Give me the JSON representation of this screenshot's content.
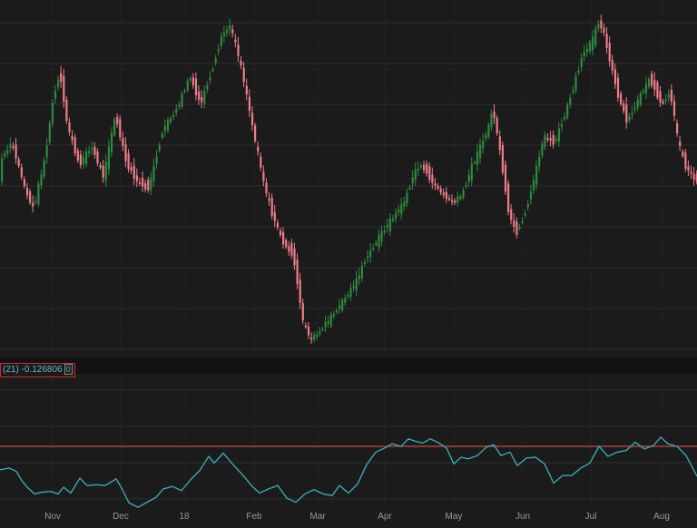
{
  "chart_data": [
    {
      "type": "candlestick",
      "title": "",
      "colors": {
        "up": "#2e8b3e",
        "down": "#f07c8a",
        "background": "#1b1b1b",
        "grid": "#2c2c2c"
      },
      "grid": true,
      "x_labels": [
        "Nov",
        "Dec",
        "18",
        "Feb",
        "Mar",
        "Apr",
        "May",
        "Jun",
        "Jul",
        "Aug"
      ],
      "close_path": [
        [
          0,
          0.66
        ],
        [
          12,
          0.58
        ],
        [
          28,
          0.82
        ],
        [
          36,
          0.88
        ],
        [
          48,
          0.66
        ],
        [
          58,
          0.36
        ],
        [
          65,
          0.25
        ],
        [
          73,
          0.5
        ],
        [
          86,
          0.68
        ],
        [
          100,
          0.6
        ],
        [
          113,
          0.74
        ],
        [
          126,
          0.45
        ],
        [
          138,
          0.67
        ],
        [
          150,
          0.76
        ],
        [
          163,
          0.79
        ],
        [
          178,
          0.52
        ],
        [
          193,
          0.43
        ],
        [
          208,
          0.27
        ],
        [
          220,
          0.4
        ],
        [
          234,
          0.22
        ],
        [
          243,
          0.08
        ],
        [
          253,
          0.04
        ],
        [
          263,
          0.2
        ],
        [
          271,
          0.37
        ],
        [
          279,
          0.55
        ],
        [
          290,
          0.78
        ],
        [
          298,
          0.9
        ],
        [
          310,
          1.04
        ],
        [
          322,
          1.1
        ],
        [
          333,
          1.42
        ],
        [
          342,
          1.5
        ],
        [
          353,
          1.45
        ],
        [
          368,
          1.37
        ],
        [
          380,
          1.3
        ],
        [
          392,
          1.22
        ],
        [
          402,
          1.12
        ],
        [
          415,
          1.03
        ],
        [
          430,
          0.94
        ],
        [
          444,
          0.86
        ],
        [
          455,
          0.72
        ],
        [
          464,
          0.68
        ],
        [
          475,
          0.76
        ],
        [
          486,
          0.82
        ],
        [
          500,
          0.86
        ],
        [
          508,
          0.82
        ],
        [
          518,
          0.7
        ],
        [
          528,
          0.6
        ],
        [
          535,
          0.54
        ],
        [
          542,
          0.42
        ],
        [
          552,
          0.68
        ],
        [
          560,
          0.92
        ],
        [
          568,
          1.0
        ],
        [
          578,
          0.9
        ],
        [
          590,
          0.7
        ],
        [
          598,
          0.55
        ],
        [
          610,
          0.58
        ],
        [
          625,
          0.4
        ],
        [
          640,
          0.18
        ],
        [
          652,
          0.1
        ],
        [
          660,
          0.0
        ],
        [
          670,
          0.18
        ],
        [
          680,
          0.36
        ],
        [
          690,
          0.48
        ],
        [
          702,
          0.38
        ],
        [
          715,
          0.28
        ],
        [
          728,
          0.4
        ],
        [
          738,
          0.35
        ],
        [
          746,
          0.58
        ],
        [
          755,
          0.7
        ],
        [
          768,
          0.76
        ]
      ]
    },
    {
      "type": "line",
      "study_label": "(21) -0.126806",
      "study_flag": "0",
      "reference_line": 0,
      "colors": {
        "line": "#3aa6b4",
        "reference": "#c84545"
      },
      "series": [
        {
          "values": [
            [
              0,
              0.56
            ],
            [
              10,
              0.52
            ],
            [
              18,
              0.6
            ],
            [
              24,
              0.82
            ],
            [
              30,
              0.98
            ],
            [
              38,
              1.14
            ],
            [
              46,
              1.1
            ],
            [
              56,
              1.08
            ],
            [
              64,
              1.14
            ],
            [
              70,
              0.98
            ],
            [
              78,
              1.12
            ],
            [
              88,
              0.76
            ],
            [
              96,
              0.94
            ],
            [
              106,
              0.92
            ],
            [
              116,
              0.94
            ],
            [
              128,
              0.78
            ],
            [
              134,
              1.0
            ],
            [
              142,
              1.35
            ],
            [
              152,
              1.46
            ],
            [
              162,
              1.34
            ],
            [
              172,
              1.22
            ],
            [
              180,
              1.02
            ],
            [
              190,
              0.96
            ],
            [
              200,
              1.06
            ],
            [
              210,
              0.8
            ],
            [
              220,
              0.58
            ],
            [
              230,
              0.24
            ],
            [
              236,
              0.4
            ],
            [
              246,
              0.16
            ],
            [
              256,
              0.42
            ],
            [
              268,
              0.7
            ],
            [
              278,
              0.96
            ],
            [
              286,
              1.12
            ],
            [
              296,
              1.02
            ],
            [
              306,
              0.94
            ],
            [
              316,
              1.24
            ],
            [
              326,
              1.34
            ],
            [
              336,
              1.14
            ],
            [
              346,
              1.04
            ],
            [
              356,
              1.14
            ],
            [
              366,
              1.18
            ],
            [
              374,
              0.94
            ],
            [
              384,
              1.12
            ],
            [
              394,
              0.9
            ],
            [
              404,
              0.44
            ],
            [
              414,
              0.14
            ],
            [
              424,
              0.04
            ],
            [
              432,
              -0.06
            ],
            [
              442,
              0.0
            ],
            [
              450,
              -0.18
            ],
            [
              458,
              -0.12
            ],
            [
              466,
              -0.08
            ],
            [
              474,
              -0.18
            ],
            [
              482,
              -0.1
            ],
            [
              492,
              0.04
            ],
            [
              500,
              0.42
            ],
            [
              508,
              0.26
            ],
            [
              516,
              0.3
            ],
            [
              526,
              0.22
            ],
            [
              536,
              0.02
            ],
            [
              544,
              -0.04
            ],
            [
              552,
              0.22
            ],
            [
              562,
              0.14
            ],
            [
              570,
              0.46
            ],
            [
              580,
              0.28
            ],
            [
              590,
              0.26
            ],
            [
              600,
              0.42
            ],
            [
              610,
              0.88
            ],
            [
              620,
              0.7
            ],
            [
              630,
              0.7
            ],
            [
              640,
              0.52
            ],
            [
              650,
              0.4
            ],
            [
              660,
              0.0
            ],
            [
              670,
              0.24
            ],
            [
              680,
              0.14
            ],
            [
              690,
              0.1
            ],
            [
              700,
              -0.1
            ],
            [
              710,
              0.06
            ],
            [
              720,
              -0.02
            ],
            [
              728,
              -0.22
            ],
            [
              736,
              -0.06
            ],
            [
              746,
              0.0
            ],
            [
              756,
              0.22
            ],
            [
              768,
              0.72
            ]
          ]
        }
      ]
    }
  ]
}
